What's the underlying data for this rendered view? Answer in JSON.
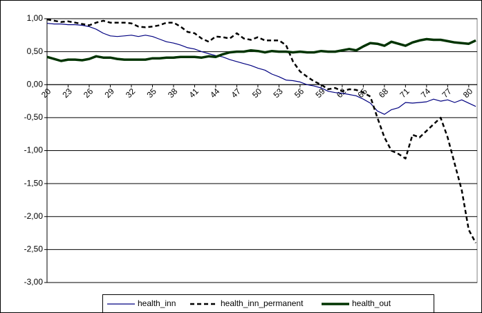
{
  "chart_data": {
    "type": "line",
    "x": [
      20,
      21,
      22,
      23,
      24,
      25,
      26,
      27,
      28,
      29,
      30,
      31,
      32,
      33,
      34,
      35,
      36,
      37,
      38,
      39,
      40,
      41,
      42,
      43,
      44,
      45,
      46,
      47,
      48,
      49,
      50,
      51,
      52,
      53,
      54,
      55,
      56,
      57,
      58,
      59,
      60,
      61,
      62,
      63,
      64,
      65,
      66,
      67,
      68,
      69,
      70,
      71,
      72,
      73,
      74,
      75,
      76,
      77,
      78,
      79,
      80,
      81
    ],
    "xlim": [
      20,
      81
    ],
    "xticks": [
      20,
      23,
      26,
      29,
      32,
      35,
      38,
      41,
      44,
      47,
      50,
      53,
      56,
      59,
      62,
      65,
      68,
      71,
      74,
      77,
      80
    ],
    "ylim": [
      -3,
      1
    ],
    "yticks": [
      {
        "value": -3,
        "label": "-3,00"
      },
      {
        "value": -2.5,
        "label": "-2,50"
      },
      {
        "value": -2,
        "label": "-2,00"
      },
      {
        "value": -1.5,
        "label": "-1,50"
      },
      {
        "value": -1,
        "label": "-1,00"
      },
      {
        "value": -0.5,
        "label": "-0,50"
      },
      {
        "value": 0,
        "label": "0,00"
      },
      {
        "value": 0.5,
        "label": "0,50"
      },
      {
        "value": 1,
        "label": "1,00"
      }
    ],
    "grid": true,
    "legend": "bottom",
    "series": [
      {
        "name": "health_inn",
        "color": "#000080",
        "style": "solid",
        "width": 1.2,
        "values": [
          0.93,
          0.92,
          0.92,
          0.91,
          0.91,
          0.9,
          0.88,
          0.84,
          0.78,
          0.74,
          0.73,
          0.74,
          0.75,
          0.73,
          0.75,
          0.73,
          0.69,
          0.65,
          0.63,
          0.6,
          0.56,
          0.54,
          0.5,
          0.47,
          0.44,
          0.42,
          0.38,
          0.35,
          0.32,
          0.29,
          0.25,
          0.22,
          0.16,
          0.12,
          0.07,
          0.06,
          0.04,
          0.0,
          -0.02,
          -0.05,
          -0.1,
          -0.12,
          -0.13,
          -0.15,
          -0.17,
          -0.22,
          -0.28,
          -0.4,
          -0.45,
          -0.38,
          -0.35,
          -0.27,
          -0.28,
          -0.27,
          -0.26,
          -0.22,
          -0.25,
          -0.23,
          -0.27,
          -0.23,
          -0.28,
          -0.33
        ]
      },
      {
        "name": "health_inn_permanent",
        "color": "#000000",
        "style": "dashed",
        "width": 2.5,
        "values": [
          0.99,
          0.97,
          0.95,
          0.96,
          0.94,
          0.92,
          0.9,
          0.94,
          0.97,
          0.94,
          0.94,
          0.94,
          0.93,
          0.88,
          0.87,
          0.88,
          0.9,
          0.94,
          0.94,
          0.88,
          0.8,
          0.78,
          0.7,
          0.65,
          0.73,
          0.72,
          0.7,
          0.78,
          0.7,
          0.68,
          0.72,
          0.67,
          0.67,
          0.67,
          0.6,
          0.35,
          0.2,
          0.12,
          0.05,
          0.0,
          -0.07,
          -0.05,
          -0.1,
          -0.07,
          -0.08,
          -0.12,
          -0.18,
          -0.5,
          -0.8,
          -1.0,
          -1.05,
          -1.12,
          -0.76,
          -0.8,
          -0.7,
          -0.6,
          -0.5,
          -0.8,
          -1.2,
          -1.6,
          -2.2,
          -2.4
        ]
      },
      {
        "name": "health_out",
        "color": "#003300",
        "style": "solid",
        "width": 3.5,
        "values": [
          0.42,
          0.39,
          0.36,
          0.38,
          0.38,
          0.37,
          0.39,
          0.43,
          0.41,
          0.41,
          0.39,
          0.38,
          0.38,
          0.38,
          0.38,
          0.4,
          0.4,
          0.41,
          0.41,
          0.42,
          0.42,
          0.42,
          0.41,
          0.43,
          0.42,
          0.46,
          0.49,
          0.5,
          0.5,
          0.52,
          0.51,
          0.49,
          0.51,
          0.5,
          0.5,
          0.49,
          0.5,
          0.49,
          0.49,
          0.51,
          0.5,
          0.5,
          0.52,
          0.54,
          0.52,
          0.58,
          0.63,
          0.62,
          0.59,
          0.65,
          0.62,
          0.59,
          0.64,
          0.67,
          0.69,
          0.68,
          0.68,
          0.66,
          0.64,
          0.63,
          0.62,
          0.67
        ]
      }
    ]
  }
}
